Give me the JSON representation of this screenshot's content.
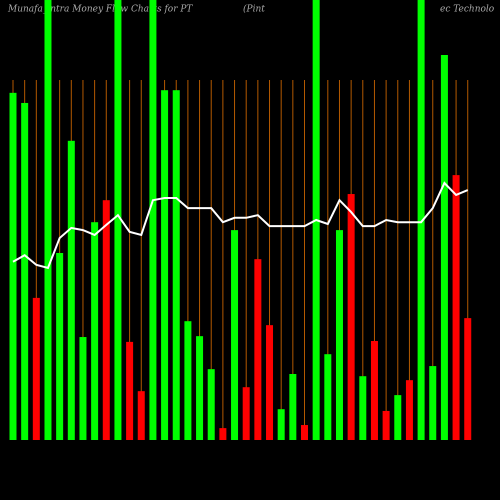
{
  "chart_data": {
    "type": "bar",
    "title_parts": [
      "Munafa_intra  Money Flow  Charts for PT",
      "(Pint",
      "ec Technolo"
    ],
    "categories": [
      null,
      null,
      null,
      null,
      null,
      null,
      null,
      null,
      null,
      null,
      null,
      null,
      null,
      null,
      null,
      null,
      null,
      null,
      null,
      null,
      null,
      null,
      null,
      null,
      null,
      null,
      null,
      null,
      null,
      null,
      null,
      null,
      null,
      null,
      null,
      null,
      null,
      null,
      null,
      null
    ],
    "values": [
      78.9,
      76.6,
      32.3,
      100,
      42.5,
      68.0,
      23.4,
      49.5,
      54.5,
      100,
      22.3,
      11.1,
      100,
      79.5,
      79.5,
      27.0,
      23.6,
      16.1,
      2.7,
      47.7,
      12.0,
      41.1,
      26.1,
      7.0,
      15.0,
      3.4,
      100,
      19.5,
      47.7,
      55.9,
      14.5,
      22.5,
      6.6,
      10.2,
      13.6,
      100,
      16.8,
      87.5,
      60.2,
      27.7
    ],
    "colors": [
      "#00ff00",
      "#00ff00",
      "#ff0000",
      "#00ff00",
      "#00ff00",
      "#00ff00",
      "#00ff00",
      "#00ff00",
      "#ff0000",
      "#00ff00",
      "#ff0000",
      "#ff0000",
      "#00ff00",
      "#00ff00",
      "#00ff00",
      "#00ff00",
      "#00ff00",
      "#00ff00",
      "#ff0000",
      "#00ff00",
      "#ff0000",
      "#ff0000",
      "#ff0000",
      "#00ff00",
      "#00ff00",
      "#ff0000",
      "#00ff00",
      "#00ff00",
      "#00ff00",
      "#ff0000",
      "#00ff00",
      "#ff0000",
      "#ff0000",
      "#00ff00",
      "#ff0000",
      "#00ff00",
      "#00ff00",
      "#00ff00",
      "#ff0000",
      "#ff0000"
    ],
    "line": {
      "color": "#ffffff",
      "values": [
        40.5,
        42.0,
        39.8,
        39.1,
        45.9,
        48.2,
        47.7,
        46.6,
        48.9,
        51.1,
        47.3,
        46.6,
        54.5,
        55.0,
        55.0,
        52.7,
        52.7,
        52.7,
        49.5,
        50.5,
        50.5,
        51.1,
        48.6,
        48.6,
        48.6,
        48.6,
        50.0,
        49.1,
        54.5,
        51.8,
        48.6,
        48.6,
        50.0,
        49.5,
        49.5,
        49.5,
        52.7,
        58.4,
        55.7,
        56.8
      ]
    },
    "ylim": [
      0,
      100
    ],
    "grid_color": "#b35900"
  }
}
